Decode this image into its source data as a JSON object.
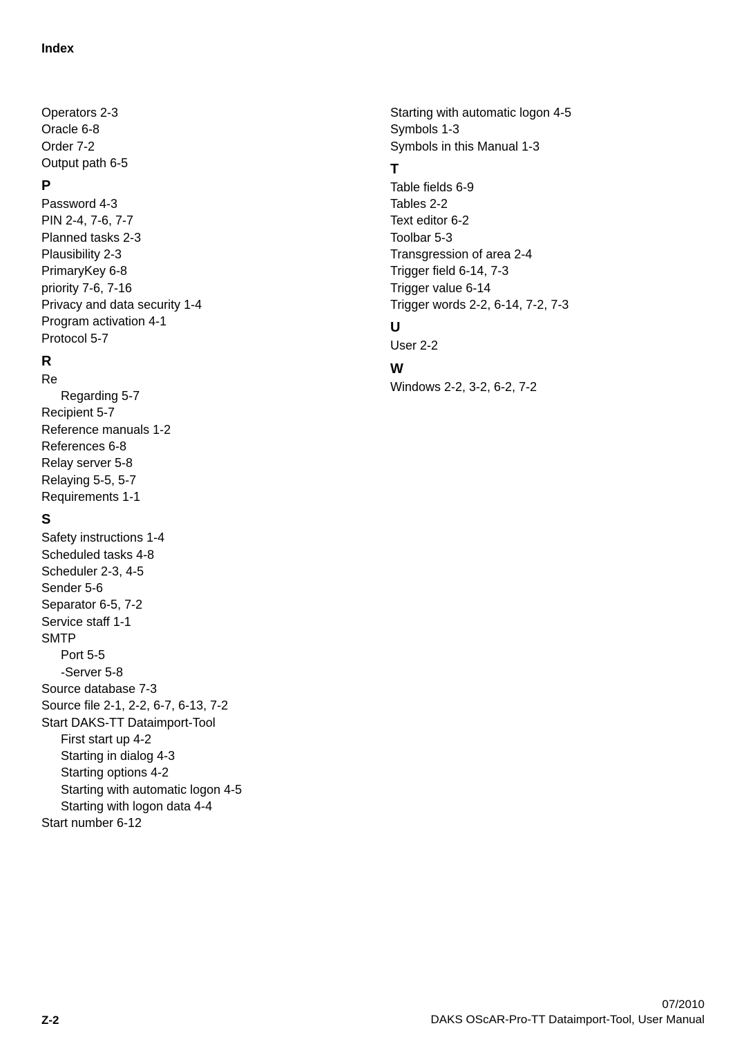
{
  "title": "Index",
  "left": {
    "pre": [
      "Operators  2-3",
      "Oracle  6-8",
      "Order  7-2",
      "Output path  6-5"
    ],
    "P": {
      "letter": "P",
      "items": [
        "Password  4-3",
        "PIN  2-4, 7-6, 7-7",
        "Planned tasks  2-3",
        "Plausibility  2-3",
        "PrimaryKey  6-8",
        "priority  7-6, 7-16",
        "Privacy and data security  1-4",
        "Program activation  4-1",
        "Protocol  5-7"
      ]
    },
    "R": {
      "letter": "R",
      "items": [
        {
          "text": "Re",
          "sub": [
            "Regarding  5-7"
          ]
        },
        "Recipient  5-7",
        "Reference manuals  1-2",
        "References  6-8",
        "Relay server  5-8",
        "Relaying  5-5, 5-7",
        "Requirements  1-1"
      ]
    },
    "S": {
      "letter": "S",
      "items": [
        "Safety instructions  1-4",
        "Scheduled tasks  4-8",
        "Scheduler  2-3, 4-5",
        "Sender  5-6",
        "Separator  6-5, 7-2",
        "Service staff  1-1",
        {
          "text": "SMTP",
          "sub": [
            "Port  5-5",
            "-Server  5-8"
          ]
        },
        "Source database  7-3",
        "Source file  2-1, 2-2, 6-7, 6-13, 7-2",
        {
          "text": "Start DAKS-TT Dataimport-Tool",
          "sub": [
            "First start up  4-2",
            "Starting in dialog  4-3",
            "Starting options  4-2",
            "Starting with automatic logon  4-5",
            "Starting with logon data  4-4"
          ]
        },
        "Start number  6-12"
      ]
    }
  },
  "right": {
    "pre": [
      "Starting with automatic logon  4-5",
      "Symbols  1-3",
      "Symbols in this Manual  1-3"
    ],
    "T": {
      "letter": "T",
      "items": [
        "Table fields  6-9",
        "Tables  2-2",
        "Text editor  6-2",
        "Toolbar  5-3",
        "Transgression of area  2-4",
        "Trigger field  6-14, 7-3",
        "Trigger value  6-14",
        "Trigger words  2-2, 6-14, 7-2, 7-3"
      ]
    },
    "U": {
      "letter": "U",
      "items": [
        "User  2-2"
      ]
    },
    "W": {
      "letter": "W",
      "items": [
        "Windows  2-2, 3-2, 6-2, 7-2"
      ]
    }
  },
  "footer": {
    "left": "Z-2",
    "right_line1": "07/2010",
    "right_line2": "DAKS OScAR-Pro-TT Dataimport-Tool, User Manual"
  }
}
